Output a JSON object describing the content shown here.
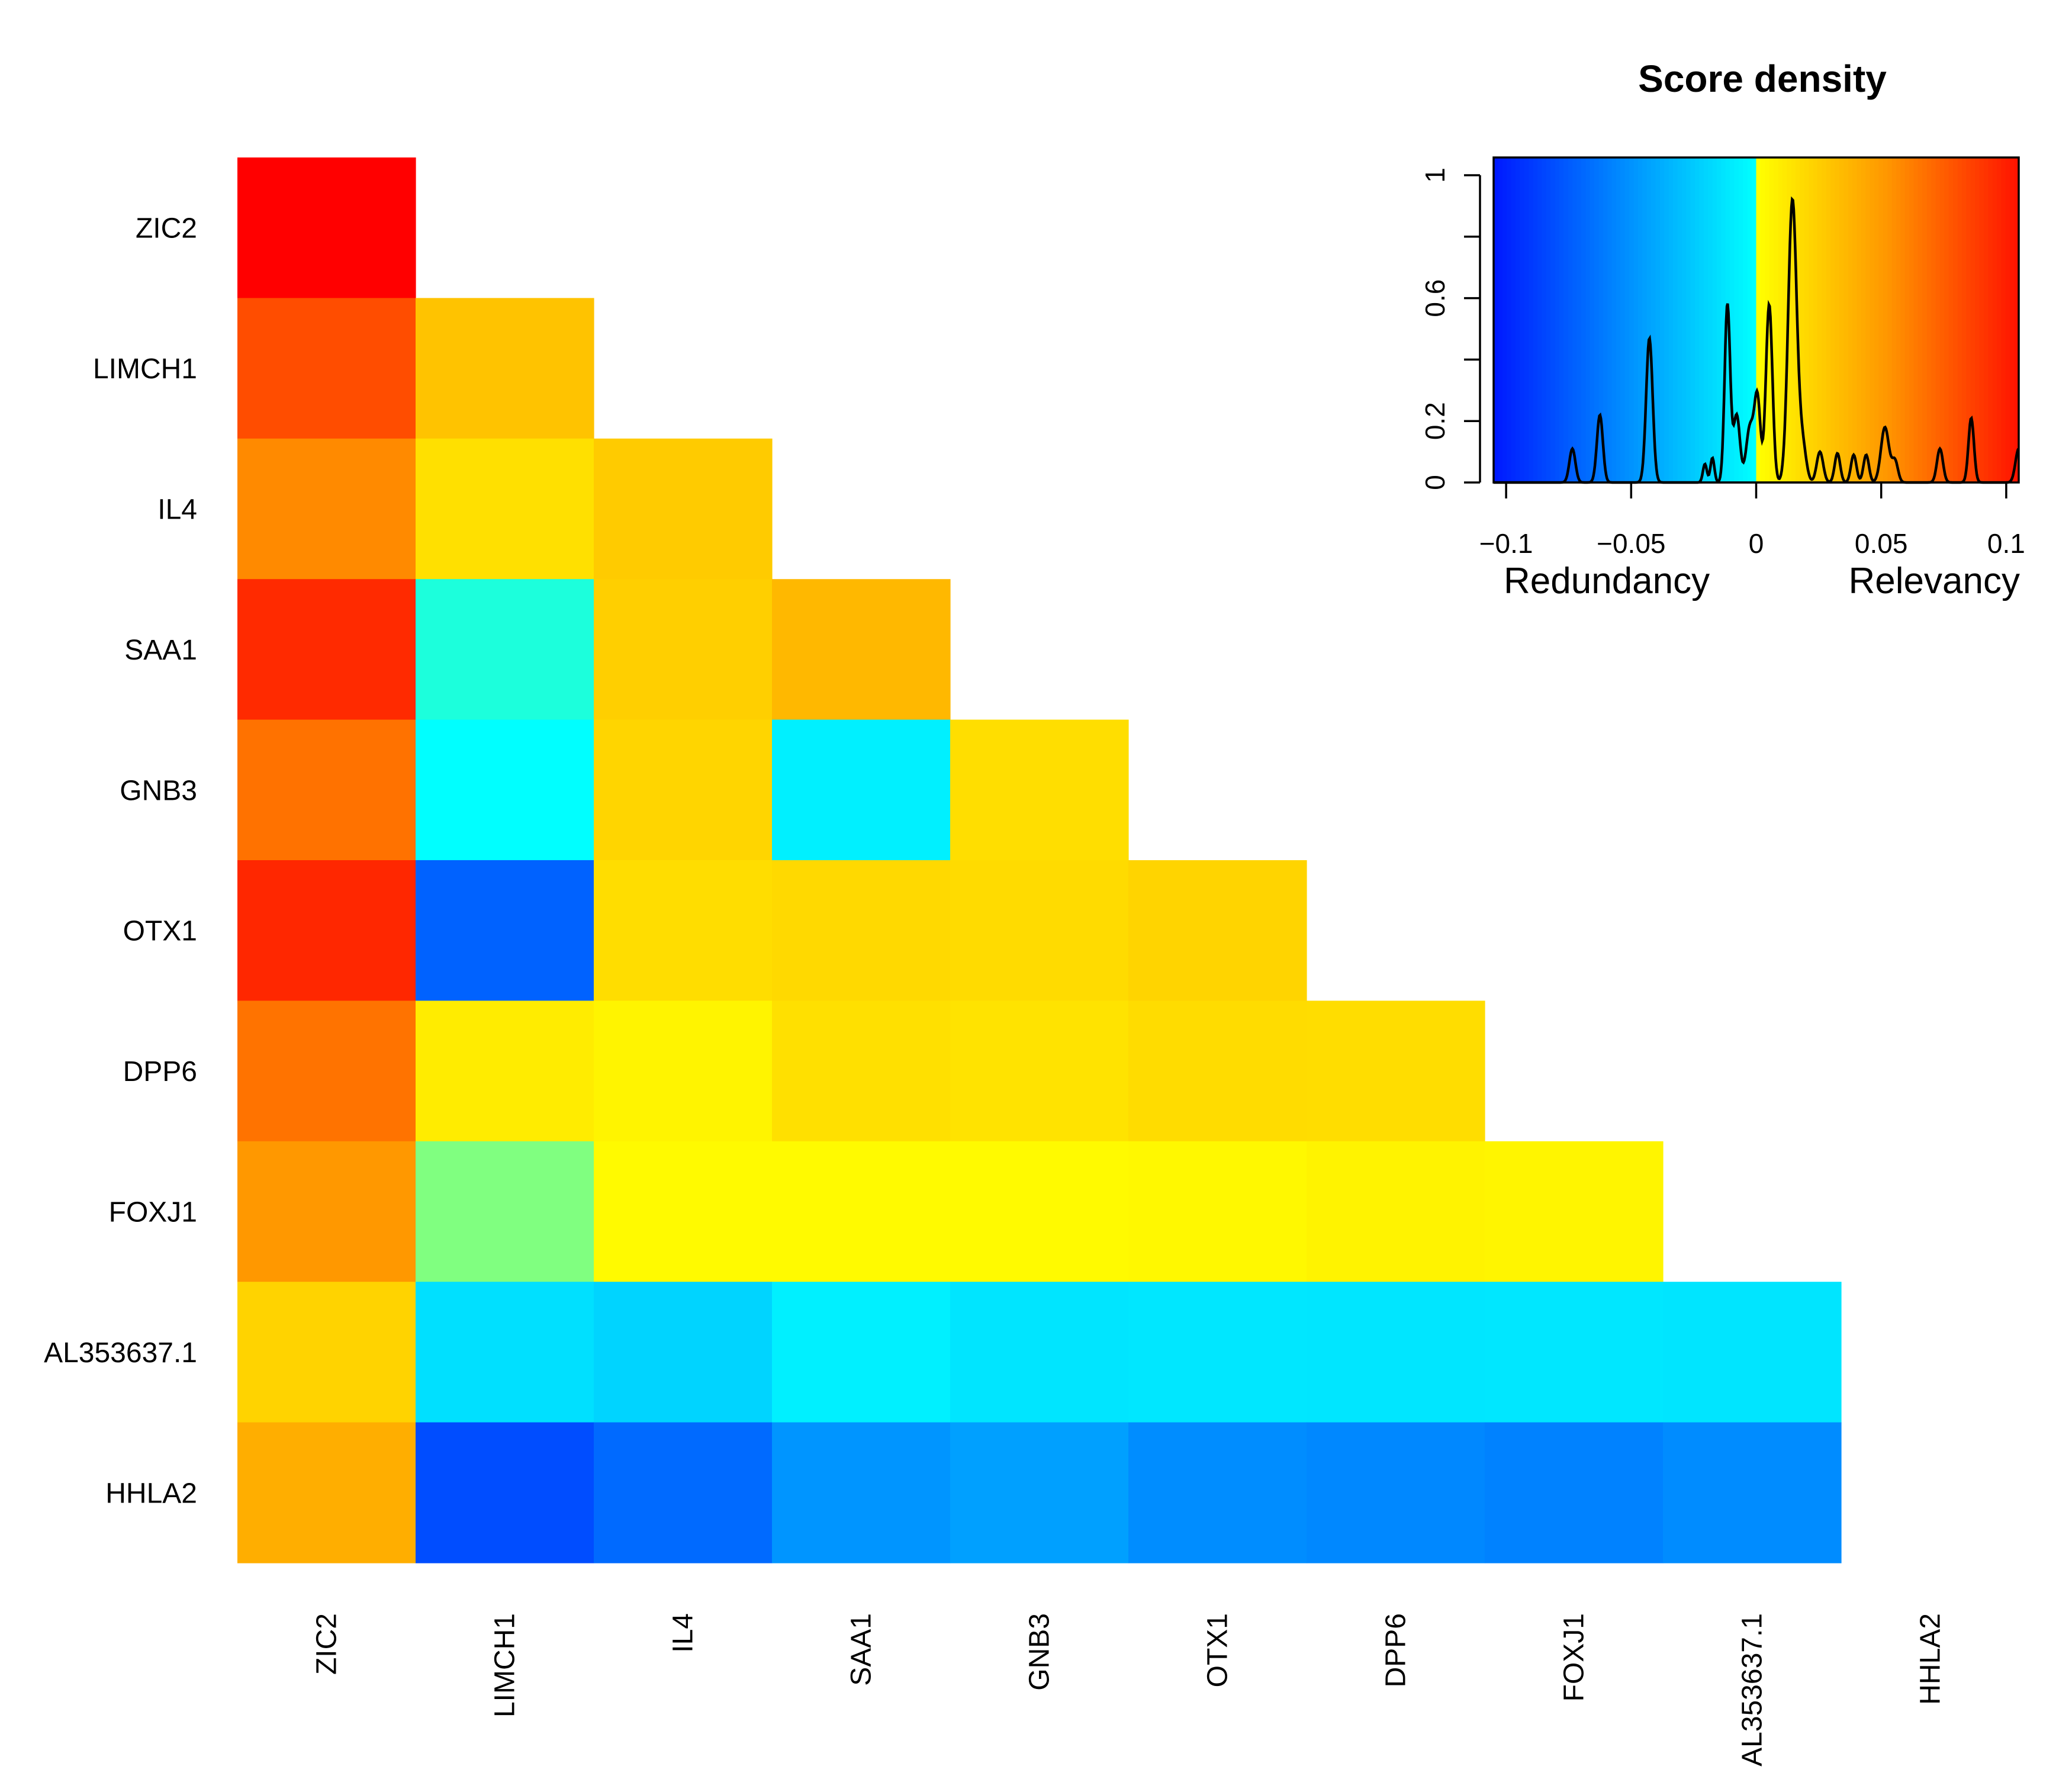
{
  "chart_data": [
    {
      "type": "heatmap",
      "genes": [
        "ZIC2",
        "LIMCH1",
        "IL4",
        "SAA1",
        "GNB3",
        "OTX1",
        "DPP6",
        "FOXJ1",
        "AL353637.1",
        "HHLA2"
      ],
      "shape": "lower-triangular",
      "cell_colors": [
        [
          "#FF0000"
        ],
        [
          "#FF4D00",
          "#FFC300"
        ],
        [
          "#FF8A00",
          "#FFE000",
          "#FFCB00"
        ],
        [
          "#FF2A00",
          "#1CFFDC",
          "#FFCF00",
          "#FFB800"
        ],
        [
          "#FF7200",
          "#00FFFF",
          "#FFD500",
          "#00F0FF",
          "#FFDE00"
        ],
        [
          "#FF2700",
          "#0062FF",
          "#FFDD00",
          "#FFD900",
          "#FFDB00",
          "#FFD400"
        ],
        [
          "#FF7300",
          "#FFEC00",
          "#FFF400",
          "#FFE000",
          "#FFE300",
          "#FFDC00",
          "#FFDD00"
        ],
        [
          "#FF9800",
          "#80FF80",
          "#FFFA00",
          "#FFFA00",
          "#FFFA00",
          "#FFF800",
          "#FFF300",
          "#FFF500"
        ],
        [
          "#FFD300",
          "#00E0FF",
          "#00D4FF",
          "#00F0FF",
          "#00E5FF",
          "#00E7FF",
          "#00E6FF",
          "#00E7FF",
          "#00E5FF"
        ],
        [
          "#FFAE00",
          "#004DFF",
          "#006AFF",
          "#0095FF",
          "#00A0FF",
          "#008DFF",
          "#0088FF",
          "#0082FF",
          "#008CFF"
        ]
      ]
    },
    {
      "type": "area",
      "title": "Score density",
      "x_range": [
        -0.105,
        0.105
      ],
      "y_range": [
        0,
        1
      ],
      "x_ticks": [
        {
          "value": -0.1,
          "label": "−0.1"
        },
        {
          "value": -0.05,
          "label": "−0.05"
        },
        {
          "value": 0,
          "label": "0"
        },
        {
          "value": 0.05,
          "label": "0.05"
        },
        {
          "value": 0.1,
          "label": "0.1"
        }
      ],
      "y_tick_marks": [
        0,
        0.2,
        0.4,
        0.6,
        0.8,
        1
      ],
      "y_tick_labels": [
        {
          "value": 0,
          "label": "0"
        },
        {
          "value": 0.2,
          "label": "0.2"
        },
        {
          "value": 0.6,
          "label": "0.6"
        },
        {
          "value": 1,
          "label": "1"
        }
      ],
      "left_label": "Redundancy",
      "right_label": "Relevancy",
      "peaks": [
        {
          "x": -0.0735,
          "height": 0.11,
          "width": 0.0012
        },
        {
          "x": -0.0625,
          "height": 0.22,
          "width": 0.0012
        },
        {
          "x": -0.0427,
          "height": 0.47,
          "width": 0.0013
        },
        {
          "x": -0.0205,
          "height": 0.06,
          "width": 0.0008
        },
        {
          "x": -0.0175,
          "height": 0.08,
          "width": 0.0008
        },
        {
          "x": -0.0115,
          "height": 0.58,
          "width": 0.0011
        },
        {
          "x": -0.0078,
          "height": 0.22,
          "width": 0.0013
        },
        {
          "x": -0.0025,
          "height": 0.18,
          "width": 0.0015
        },
        {
          "x": 0.0005,
          "height": 0.27,
          "width": 0.0012
        },
        {
          "x": 0.0052,
          "height": 0.58,
          "width": 0.0013
        },
        {
          "x": 0.0145,
          "height": 0.92,
          "width": 0.0017
        },
        {
          "x": 0.0185,
          "height": 0.12,
          "width": 0.0015
        },
        {
          "x": 0.0255,
          "height": 0.1,
          "width": 0.0013
        },
        {
          "x": 0.0325,
          "height": 0.095,
          "width": 0.0011
        },
        {
          "x": 0.039,
          "height": 0.09,
          "width": 0.0011
        },
        {
          "x": 0.044,
          "height": 0.09,
          "width": 0.0011
        },
        {
          "x": 0.0515,
          "height": 0.18,
          "width": 0.0016
        },
        {
          "x": 0.0555,
          "height": 0.07,
          "width": 0.0012
        },
        {
          "x": 0.0735,
          "height": 0.11,
          "width": 0.0012
        },
        {
          "x": 0.086,
          "height": 0.21,
          "width": 0.0011
        },
        {
          "x": 0.105,
          "height": 0.11,
          "width": 0.0013
        }
      ]
    }
  ]
}
